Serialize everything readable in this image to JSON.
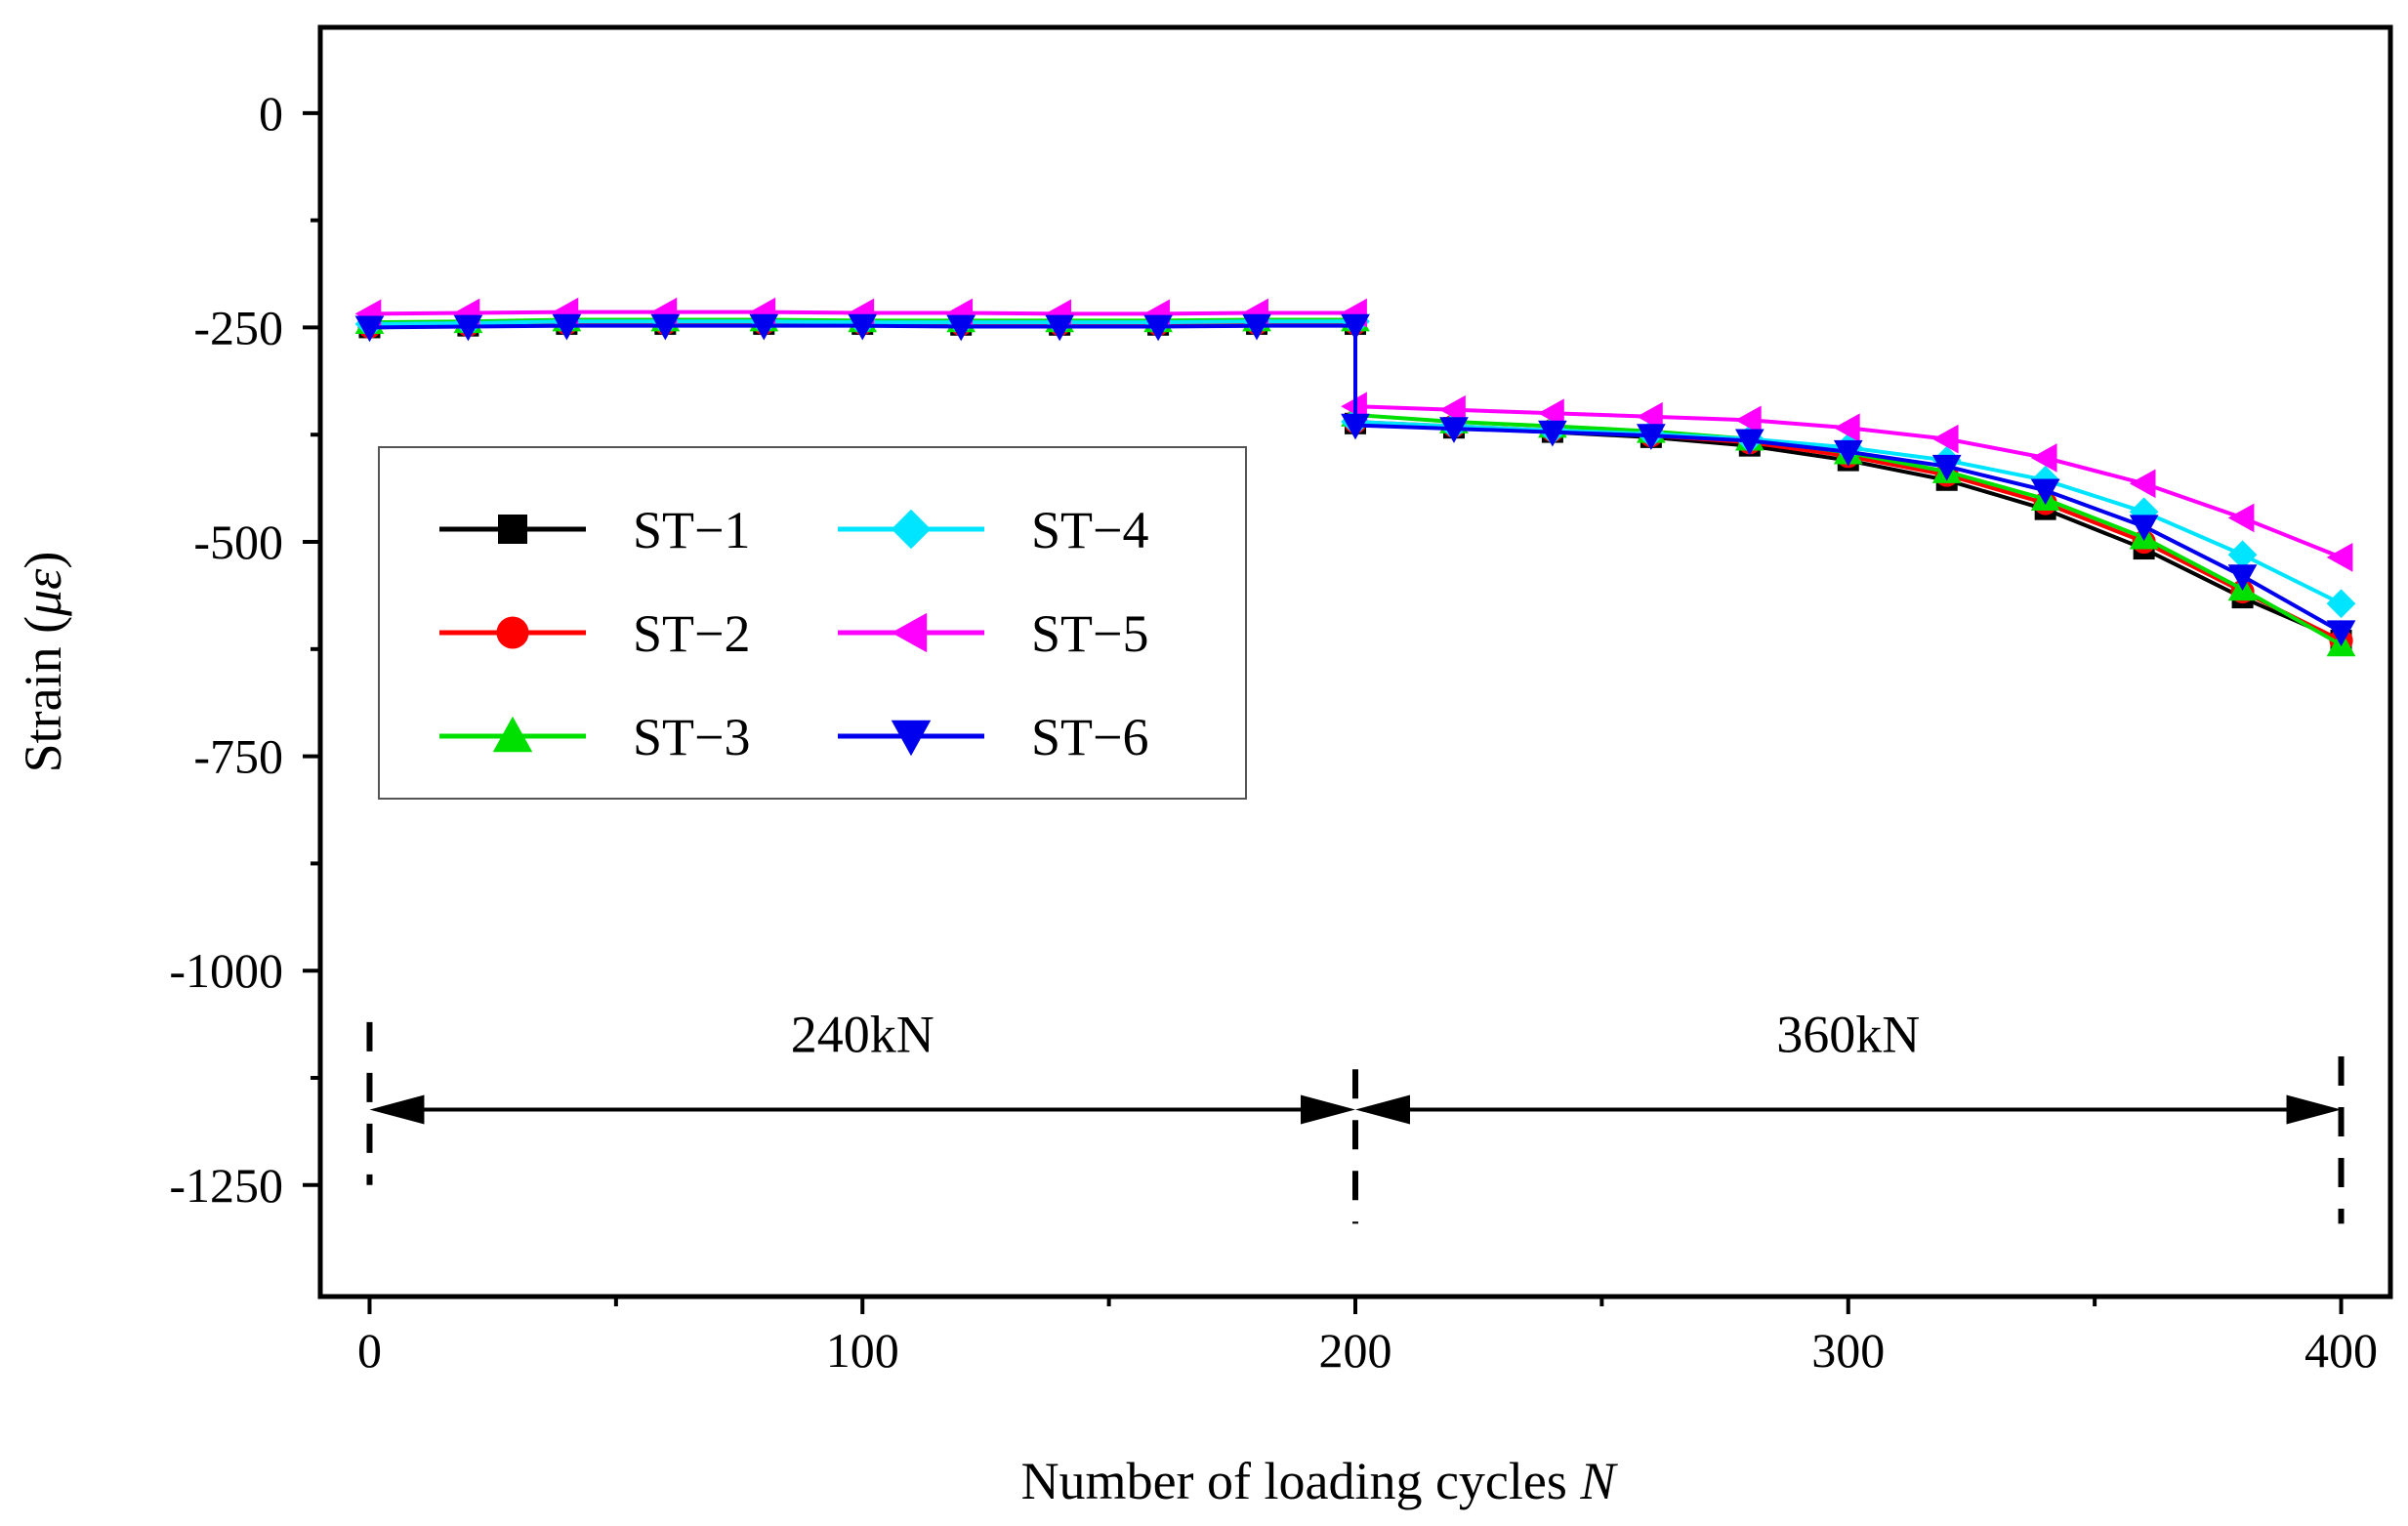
{
  "chart_data": {
    "type": "line",
    "xlabel_text": "Number of loading cycles ",
    "xlabel_var": "N",
    "ylabel_text": "Strain (",
    "ylabel_var": "με",
    "ylabel_close": ")",
    "xlim": [
      -10,
      410
    ],
    "ylim": [
      -1380,
      100
    ],
    "xticks": [
      0,
      100,
      200,
      300,
      400
    ],
    "xminor": [
      50,
      150,
      250,
      350
    ],
    "yticks": [
      0,
      -250,
      -500,
      -750,
      -1000,
      -1250
    ],
    "yminor": [
      -125,
      -375,
      -625,
      -875,
      -1125
    ],
    "x": [
      0,
      20,
      40,
      60,
      80,
      100,
      120,
      140,
      160,
      180,
      200,
      200,
      220,
      240,
      260,
      280,
      300,
      320,
      340,
      360,
      380,
      400
    ],
    "series": [
      {
        "name": "ST−1",
        "color": "#000000",
        "marker": "square",
        "values": [
          -250,
          -248,
          -246,
          -246,
          -246,
          -246,
          -247,
          -247,
          -247,
          -246,
          -246,
          -362,
          -367,
          -372,
          -378,
          -388,
          -405,
          -428,
          -462,
          -508,
          -565,
          -615
        ]
      },
      {
        "name": "ST−2",
        "color": "#ff0000",
        "marker": "circle",
        "values": [
          -249,
          -247,
          -245,
          -245,
          -245,
          -245,
          -246,
          -246,
          -246,
          -245,
          -245,
          -360,
          -365,
          -370,
          -376,
          -384,
          -400,
          -422,
          -455,
          -500,
          -558,
          -615
        ]
      },
      {
        "name": "ST−3",
        "color": "#00e000",
        "marker": "triangle-up",
        "values": [
          -244,
          -243,
          -241,
          -241,
          -241,
          -242,
          -242,
          -242,
          -242,
          -241,
          -241,
          -352,
          -360,
          -365,
          -371,
          -380,
          -396,
          -418,
          -450,
          -495,
          -555,
          -620
        ]
      },
      {
        "name": "ST−4",
        "color": "#00e5ff",
        "marker": "diamond",
        "values": [
          -246,
          -245,
          -243,
          -243,
          -243,
          -244,
          -244,
          -244,
          -244,
          -243,
          -243,
          -360,
          -365,
          -370,
          -374,
          -380,
          -390,
          -405,
          -428,
          -465,
          -515,
          -572
        ]
      },
      {
        "name": "ST−5",
        "color": "#ff00ff",
        "marker": "triangle-left",
        "values": [
          -234,
          -233,
          -232,
          -232,
          -232,
          -233,
          -233,
          -234,
          -234,
          -233,
          -233,
          -342,
          -346,
          -350,
          -354,
          -358,
          -367,
          -380,
          -402,
          -432,
          -472,
          -518
        ]
      },
      {
        "name": "ST−6",
        "color": "#0000ee",
        "marker": "triangle-down",
        "values": [
          -250,
          -249,
          -248,
          -248,
          -248,
          -248,
          -249,
          -249,
          -249,
          -248,
          -248,
          -364,
          -368,
          -372,
          -376,
          -382,
          -395,
          -412,
          -440,
          -482,
          -540,
          -605
        ]
      }
    ],
    "annotations": [
      {
        "label": "240kN",
        "from": 0,
        "to": 200,
        "label_x": 100,
        "arrow_y": -1162,
        "label_y": -1095
      },
      {
        "label": "360kN",
        "from": 200,
        "to": 400,
        "label_x": 300,
        "arrow_y": -1162,
        "label_y": -1095
      }
    ],
    "dividers": [
      {
        "x": 0,
        "from": -1060,
        "to": -1250
      },
      {
        "x": 200,
        "from": -1115,
        "to": -1295
      },
      {
        "x": 400,
        "from": -1100,
        "to": -1295
      }
    ],
    "legend_position": "center-left",
    "grid": false
  }
}
